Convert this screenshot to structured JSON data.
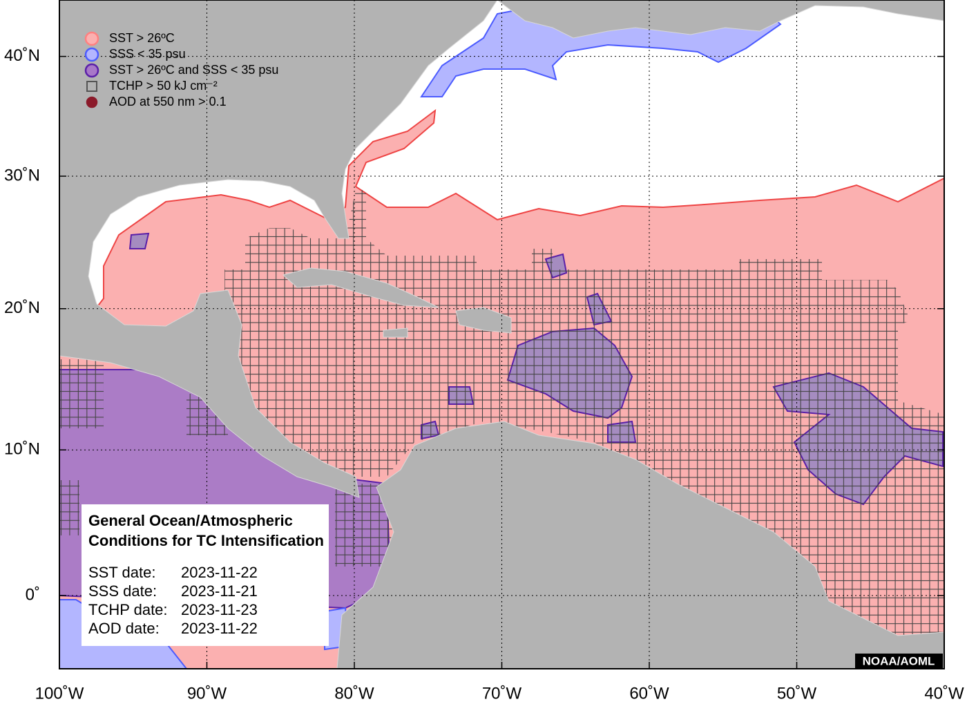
{
  "map": {
    "legend": [
      {
        "label": "SST > 26ºC",
        "color": "#ff8080",
        "fill": "#fbb0b0",
        "marker": "circle"
      },
      {
        "label": "SSS < 35 psu",
        "color": "#4b5bff",
        "fill": "#b3b6ff",
        "marker": "circle"
      },
      {
        "label": "SST > 26ºC and SSS < 35 psu",
        "color": "#5a1fa8",
        "fill": "#a878c8",
        "marker": "circle"
      },
      {
        "label": "TCHP > 50 kJ cm⁻²",
        "color": "#555555",
        "fill": "none",
        "marker": "square"
      },
      {
        "label": "AOD at 550 nm > 0.1",
        "color": "#8b1a2a",
        "fill": "#8b1a2a",
        "marker": "circle"
      }
    ],
    "info_box": {
      "title": [
        "General Ocean/Atmospheric",
        "Conditions for TC Intensification"
      ],
      "dates": [
        {
          "label": "SST date:",
          "value": "2023-11-22"
        },
        {
          "label": "SSS date:",
          "value": "2023-11-21"
        },
        {
          "label": "TCHP date:",
          "value": "2023-11-23"
        },
        {
          "label": "AOD date:",
          "value": "2023-11-22"
        }
      ]
    },
    "xlim": [
      -100,
      -40
    ],
    "xticks": [
      {
        "value": -100,
        "label": "100˚W"
      },
      {
        "value": -90,
        "label": "90˚W"
      },
      {
        "value": -80,
        "label": "80˚W"
      },
      {
        "value": -70,
        "label": "70˚W"
      },
      {
        "value": -60,
        "label": "60˚W"
      },
      {
        "value": -50,
        "label": "50˚W"
      },
      {
        "value": -40,
        "label": "40˚W"
      }
    ],
    "yticks": [
      {
        "value": 0,
        "label": "0˚"
      },
      {
        "value": 10,
        "label": "10˚N"
      },
      {
        "value": 20,
        "label": "20˚N"
      },
      {
        "value": 30,
        "label": "30˚N"
      },
      {
        "value": 40,
        "label": "40˚N"
      }
    ],
    "credit": "NOAA/AOML"
  }
}
